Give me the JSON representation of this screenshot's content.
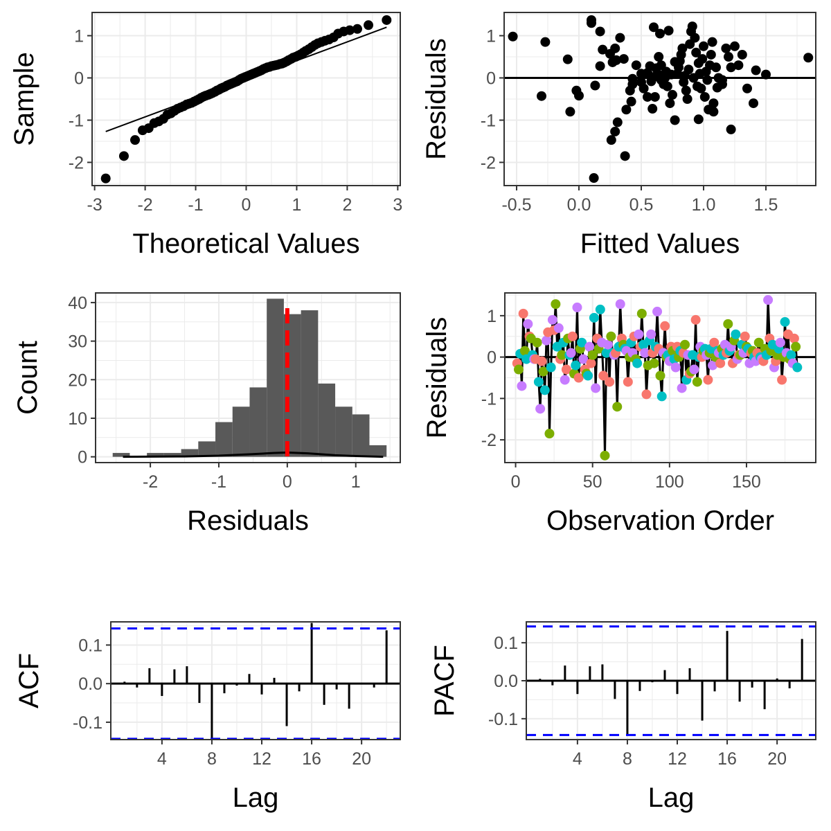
{
  "colors": {
    "grid": "#ebebeb",
    "panel_border": "#333333",
    "point": "#000000",
    "bar": "#595959",
    "mean_line": "#ff0000",
    "conf_band": "#0000ff",
    "group_colors": [
      "#f8766d",
      "#7cae00",
      "#00bfc4",
      "#c77cff"
    ]
  },
  "chart_data": [
    {
      "id": "qq",
      "type": "scatter",
      "xlabel": "Theoretical Values",
      "ylabel": "Sample",
      "xlim": [
        -3.05,
        3.05
      ],
      "ylim": [
        -2.55,
        1.55
      ],
      "xticks": [
        -3,
        -2,
        -1,
        0,
        1,
        2,
        3
      ],
      "yticks": [
        -2,
        -1,
        0,
        1
      ],
      "grid": true,
      "reference_line": [
        [
          -2.78,
          -1.27
        ],
        [
          2.78,
          1.2
        ]
      ],
      "points": [
        [
          -2.78,
          -2.38
        ],
        [
          -2.42,
          -1.85
        ],
        [
          -2.2,
          -1.47
        ],
        [
          -2.05,
          -1.24
        ],
        [
          -1.93,
          -1.19
        ],
        [
          -1.82,
          -1.07
        ],
        [
          -1.73,
          -1.03
        ],
        [
          -1.64,
          -0.97
        ],
        [
          -1.56,
          -0.87
        ],
        [
          -1.49,
          -0.84
        ],
        [
          -1.42,
          -0.78
        ],
        [
          -1.36,
          -0.73
        ],
        [
          -1.3,
          -0.7
        ],
        [
          -1.24,
          -0.67
        ],
        [
          -1.18,
          -0.63
        ],
        [
          -1.13,
          -0.61
        ],
        [
          -1.08,
          -0.59
        ],
        [
          -1.03,
          -0.56
        ],
        [
          -0.98,
          -0.53
        ],
        [
          -0.93,
          -0.5
        ],
        [
          -0.89,
          -0.47
        ],
        [
          -0.84,
          -0.44
        ],
        [
          -0.8,
          -0.42
        ],
        [
          -0.75,
          -0.4
        ],
        [
          -0.71,
          -0.38
        ],
        [
          -0.67,
          -0.36
        ],
        [
          -0.62,
          -0.33
        ],
        [
          -0.58,
          -0.3
        ],
        [
          -0.54,
          -0.28
        ],
        [
          -0.5,
          -0.25
        ],
        [
          -0.46,
          -0.23
        ],
        [
          -0.42,
          -0.21
        ],
        [
          -0.38,
          -0.18
        ],
        [
          -0.34,
          -0.16
        ],
        [
          -0.3,
          -0.14
        ],
        [
          -0.26,
          -0.12
        ],
        [
          -0.22,
          -0.1
        ],
        [
          -0.18,
          -0.08
        ],
        [
          -0.14,
          -0.05
        ],
        [
          -0.1,
          -0.02
        ],
        [
          -0.06,
          0.0
        ],
        [
          -0.02,
          0.02
        ],
        [
          0.02,
          0.04
        ],
        [
          0.06,
          0.06
        ],
        [
          0.1,
          0.08
        ],
        [
          0.14,
          0.1
        ],
        [
          0.18,
          0.12
        ],
        [
          0.22,
          0.14
        ],
        [
          0.26,
          0.16
        ],
        [
          0.3,
          0.18
        ],
        [
          0.34,
          0.21
        ],
        [
          0.38,
          0.23
        ],
        [
          0.42,
          0.25
        ],
        [
          0.46,
          0.26
        ],
        [
          0.5,
          0.28
        ],
        [
          0.54,
          0.29
        ],
        [
          0.58,
          0.3
        ],
        [
          0.62,
          0.31
        ],
        [
          0.67,
          0.33
        ],
        [
          0.71,
          0.34
        ],
        [
          0.75,
          0.36
        ],
        [
          0.8,
          0.39
        ],
        [
          0.84,
          0.42
        ],
        [
          0.89,
          0.45
        ],
        [
          0.93,
          0.48
        ],
        [
          0.98,
          0.5
        ],
        [
          1.03,
          0.53
        ],
        [
          1.08,
          0.56
        ],
        [
          1.13,
          0.6
        ],
        [
          1.18,
          0.64
        ],
        [
          1.24,
          0.68
        ],
        [
          1.3,
          0.73
        ],
        [
          1.36,
          0.78
        ],
        [
          1.42,
          0.82
        ],
        [
          1.49,
          0.85
        ],
        [
          1.56,
          0.88
        ],
        [
          1.64,
          0.91
        ],
        [
          1.73,
          0.96
        ],
        [
          1.82,
          1.05
        ],
        [
          1.93,
          1.1
        ],
        [
          2.05,
          1.13
        ],
        [
          2.2,
          1.16
        ],
        [
          2.42,
          1.25
        ],
        [
          2.78,
          1.37
        ]
      ]
    },
    {
      "id": "resid_fitted",
      "type": "scatter",
      "xlabel": "Fitted Values",
      "ylabel": "Residuals",
      "xlim": [
        -0.6,
        1.9
      ],
      "ylim": [
        -2.55,
        1.55
      ],
      "xticks": [
        -0.5,
        0.0,
        0.5,
        1.0,
        1.5
      ],
      "xtick_labels": [
        "-0.5",
        "0.0",
        "0.5",
        "1.0",
        "1.5"
      ],
      "yticks": [
        -2,
        -1,
        0,
        1
      ],
      "grid": true,
      "hline": 0,
      "points": [
        [
          -0.53,
          0.98
        ],
        [
          -0.27,
          0.85
        ],
        [
          -0.3,
          -0.43
        ],
        [
          -0.09,
          0.44
        ],
        [
          -0.02,
          -0.3
        ],
        [
          -0.07,
          -0.8
        ],
        [
          0.0,
          -0.42
        ],
        [
          0.1,
          1.37
        ],
        [
          0.1,
          1.3
        ],
        [
          0.17,
          1.1
        ],
        [
          0.12,
          -2.37
        ],
        [
          0.19,
          0.67
        ],
        [
          0.25,
          0.57
        ],
        [
          0.29,
          0.7
        ],
        [
          0.3,
          0.42
        ],
        [
          0.27,
          0.37
        ],
        [
          0.17,
          0.28
        ],
        [
          0.13,
          -0.18
        ],
        [
          0.33,
          0.95
        ],
        [
          0.36,
          0.45
        ],
        [
          0.43,
          -0.02
        ],
        [
          0.43,
          -0.15
        ],
        [
          0.41,
          -0.3
        ],
        [
          0.42,
          -0.56
        ],
        [
          0.38,
          -0.75
        ],
        [
          0.31,
          -1.05
        ],
        [
          0.26,
          -1.47
        ],
        [
          0.29,
          -1.27
        ],
        [
          0.37,
          -1.85
        ],
        [
          0.46,
          0.3
        ],
        [
          0.5,
          0.1
        ],
        [
          0.5,
          -0.1
        ],
        [
          0.52,
          -0.25
        ],
        [
          0.55,
          -0.45
        ],
        [
          0.61,
          -0.45
        ],
        [
          0.59,
          -0.73
        ],
        [
          0.64,
          0.5
        ],
        [
          0.6,
          1.2
        ],
        [
          0.65,
          1.05
        ],
        [
          0.72,
          1.12
        ],
        [
          0.66,
          0.3
        ],
        [
          0.69,
          0.0
        ],
        [
          0.71,
          -0.2
        ],
        [
          0.75,
          -0.4
        ],
        [
          0.73,
          -0.6
        ],
        [
          0.77,
          -1.0
        ],
        [
          0.79,
          0.1
        ],
        [
          0.8,
          0.25
        ],
        [
          0.81,
          0.4
        ],
        [
          0.82,
          0.55
        ],
        [
          0.83,
          0.7
        ],
        [
          0.84,
          -0.1
        ],
        [
          0.85,
          0.05
        ],
        [
          0.86,
          -0.3
        ],
        [
          0.87,
          -0.5
        ],
        [
          0.88,
          0.2
        ],
        [
          0.89,
          0.8
        ],
        [
          0.9,
          1.1
        ],
        [
          0.91,
          1.22
        ],
        [
          0.92,
          0.0
        ],
        [
          0.93,
          0.95
        ],
        [
          0.94,
          0.6
        ],
        [
          0.95,
          -0.2
        ],
        [
          0.96,
          0.35
        ],
        [
          0.97,
          0.1
        ],
        [
          0.98,
          -0.25
        ],
        [
          0.99,
          0.45
        ],
        [
          1.0,
          0.75
        ],
        [
          1.01,
          -0.45
        ],
        [
          1.02,
          0.15
        ],
        [
          1.03,
          -0.05
        ],
        [
          1.04,
          -0.75
        ],
        [
          1.05,
          0.3
        ],
        [
          1.06,
          0.55
        ],
        [
          1.07,
          0.85
        ],
        [
          1.08,
          -0.6
        ],
        [
          1.1,
          0.25
        ],
        [
          1.12,
          0.0
        ],
        [
          1.15,
          -0.15
        ],
        [
          1.18,
          0.7
        ],
        [
          1.2,
          0.5
        ],
        [
          1.22,
          0.25
        ],
        [
          1.25,
          0.75
        ],
        [
          1.28,
          0.3
        ],
        [
          1.31,
          0.55
        ],
        [
          1.35,
          -0.25
        ],
        [
          1.42,
          0.18
        ],
        [
          1.4,
          -0.6
        ],
        [
          1.5,
          0.08
        ],
        [
          1.84,
          0.48
        ],
        [
          1.22,
          -1.22
        ],
        [
          1.08,
          -0.8
        ],
        [
          0.96,
          -0.98
        ],
        [
          1.11,
          -0.23
        ],
        [
          1.15,
          -0.05
        ],
        [
          0.6,
          0.02
        ],
        [
          0.55,
          0.12
        ],
        [
          0.58,
          -0.08
        ],
        [
          0.62,
          0.23
        ],
        [
          0.68,
          -0.15
        ],
        [
          0.74,
          0.08
        ],
        [
          0.77,
          0.38
        ],
        [
          0.7,
          0.15
        ],
        [
          0.66,
          -0.05
        ],
        [
          0.63,
          0.1
        ],
        [
          0.57,
          0.28
        ]
      ]
    },
    {
      "id": "histogram",
      "type": "bar",
      "xlabel": "Residuals",
      "ylabel": "Count",
      "xlim": [
        -2.8,
        1.65
      ],
      "ylim": [
        -1.5,
        42.5
      ],
      "xticks": [
        -2,
        -1,
        0,
        1
      ],
      "yticks": [
        0,
        10,
        20,
        30,
        40
      ],
      "grid": true,
      "bins": [
        [
          -2.55,
          -2.3,
          1
        ],
        [
          -2.3,
          -2.05,
          0
        ],
        [
          -2.05,
          -1.8,
          1
        ],
        [
          -1.8,
          -1.55,
          1
        ],
        [
          -1.55,
          -1.3,
          2
        ],
        [
          -1.3,
          -1.05,
          4
        ],
        [
          -1.05,
          -0.8,
          9
        ],
        [
          -0.8,
          -0.55,
          13
        ],
        [
          -0.55,
          -0.3,
          18
        ],
        [
          -0.3,
          -0.05,
          41
        ],
        [
          -0.05,
          0.2,
          37
        ],
        [
          0.2,
          0.45,
          38
        ],
        [
          0.45,
          0.7,
          19
        ],
        [
          0.7,
          0.95,
          13
        ],
        [
          0.95,
          1.2,
          11
        ],
        [
          1.2,
          1.45,
          3
        ]
      ],
      "density_curve": [
        [
          -2.4,
          0.0
        ],
        [
          -1.5,
          0.1
        ],
        [
          -1.0,
          0.3
        ],
        [
          -0.5,
          0.7
        ],
        [
          -0.2,
          1.0
        ],
        [
          0.0,
          1.1
        ],
        [
          0.3,
          0.9
        ],
        [
          0.7,
          0.4
        ],
        [
          1.0,
          0.2
        ],
        [
          1.4,
          0.0
        ]
      ],
      "mean_line_x": 0.0
    },
    {
      "id": "resid_order",
      "type": "scatter",
      "xlabel": "Observation Order",
      "ylabel": "Residuals",
      "xlim": [
        -7,
        195
      ],
      "ylim": [
        -2.55,
        1.55
      ],
      "xticks": [
        0,
        50,
        100,
        150
      ],
      "yticks": [
        -2,
        -1,
        0,
        1
      ],
      "grid": true,
      "hline": 0,
      "values": [
        -0.15,
        -0.3,
        0.08,
        -0.7,
        1.05,
        0.15,
        -0.05,
        0.8,
        0.5,
        0.45,
        0.05,
        -0.05,
        -0.05,
        0.35,
        -0.6,
        -1.25,
        -0.1,
        -0.35,
        -0.8,
        0.4,
        0.6,
        -1.85,
        -0.25,
        0.9,
        0.65,
        1.28,
        0.25,
        0.7,
        -0.05,
        0.05,
        0.35,
        -0.55,
        -0.3,
        0.45,
        0.05,
        0.1,
        0.5,
        -0.4,
        -0.2,
        1.2,
        -0.5,
        0.2,
        0.35,
        -0.05,
        -0.3,
        -0.4,
        -0.45,
        0.25,
        -0.15,
        0.05,
        0.95,
        -0.75,
        0.45,
        0.2,
        1.15,
        0.35,
        -0.45,
        -2.38,
        0.1,
        0.3,
        -0.6,
        0.5,
        0.1,
        0.05,
        0.1,
        -1.2,
        0.25,
        1.28,
        0.45,
        0.3,
        0.2,
        0.15,
        -0.6,
        0.0,
        0.35,
        0.1,
        0.5,
        -0.05,
        -0.15,
        0.55,
        0.25,
        1.05,
        0.3,
        0.1,
        -0.9,
        -0.2,
        0.4,
        0.55,
        0.1,
        -0.15,
        0.25,
        1.1,
        0.2,
        -0.45,
        -0.95,
        0.1,
        0.75,
        0.0,
        0.05,
        -0.1,
        0.25,
        0.15,
        -0.05,
        -0.25,
        0.25,
        0.0,
        0.15,
        -0.75,
        0.1,
        0.3,
        -0.55,
        0.05,
        -0.4,
        -0.35,
        0.05,
        -0.3,
        0.9,
        -0.6,
        0.0,
        0.25,
        0.0,
        0.15,
        0.2,
        0.05,
        -0.55,
        0.1,
        0.2,
        -0.2,
        0.35,
        0.0,
        0.15,
        0.1,
        -0.15,
        0.2,
        0.05,
        0.3,
        0.1,
        0.8,
        0.15,
        0.25,
        -0.15,
        0.4,
        0.55,
        -0.05,
        0.05,
        0.05,
        0.3,
        0.1,
        0.5,
        0.25,
        0.2,
        -0.15,
        0.1,
        0.15,
        0.0,
        -0.1,
        0.1,
        0.35,
        0.0,
        -0.05,
        -0.1,
        0.2,
        0.05,
        1.38,
        0.45,
        0.15,
        0.3,
        -0.25,
        -0.1,
        0.05,
        0.2,
        0.35,
        -0.55,
        0.0,
        0.85,
        0.1,
        0.55,
        -0.05,
        0.05,
        -0.15,
        0.45,
        0.25,
        -0.25
      ],
      "color_cycle": 4
    },
    {
      "id": "acf",
      "type": "bar",
      "xlabel": "Lag",
      "ylabel": "ACF",
      "xlim": [
        -0.1,
        23.1
      ],
      "ylim": [
        -0.145,
        0.16
      ],
      "xticks": [
        4,
        8,
        12,
        16,
        20
      ],
      "yticks": [
        -0.1,
        0.0,
        0.1
      ],
      "ytick_labels": [
        "-0.1",
        "0.0",
        "0.1"
      ],
      "grid": true,
      "conf_bound": 0.143,
      "lags": [
        1,
        2,
        3,
        4,
        5,
        6,
        7,
        8,
        9,
        10,
        11,
        12,
        13,
        14,
        15,
        16,
        17,
        18,
        19,
        20,
        21,
        22
      ],
      "values": [
        0.005,
        -0.01,
        0.04,
        -0.032,
        0.037,
        0.045,
        -0.05,
        -0.143,
        -0.025,
        -0.005,
        0.025,
        -0.028,
        0.015,
        -0.11,
        -0.02,
        0.157,
        -0.055,
        -0.015,
        -0.065,
        0.002,
        -0.01,
        0.138
      ]
    },
    {
      "id": "pacf",
      "type": "bar",
      "xlabel": "Lag",
      "ylabel": "PACF",
      "xlim": [
        -0.1,
        23.1
      ],
      "ylim": [
        -0.155,
        0.155
      ],
      "xticks": [
        4,
        8,
        12,
        16,
        20
      ],
      "yticks": [
        -0.1,
        0.0,
        0.1
      ],
      "ytick_labels": [
        "-0.1",
        "0.0",
        "0.1"
      ],
      "grid": true,
      "conf_bound": 0.143,
      "lags": [
        1,
        2,
        3,
        4,
        5,
        6,
        7,
        8,
        9,
        10,
        11,
        12,
        13,
        14,
        15,
        16,
        17,
        18,
        19,
        20,
        21,
        22
      ],
      "values": [
        0.005,
        -0.012,
        0.04,
        -0.035,
        0.038,
        0.043,
        -0.048,
        -0.145,
        -0.027,
        -0.004,
        0.028,
        -0.035,
        0.033,
        -0.105,
        -0.028,
        0.131,
        -0.055,
        -0.018,
        -0.075,
        0.006,
        -0.02,
        0.11
      ]
    }
  ]
}
